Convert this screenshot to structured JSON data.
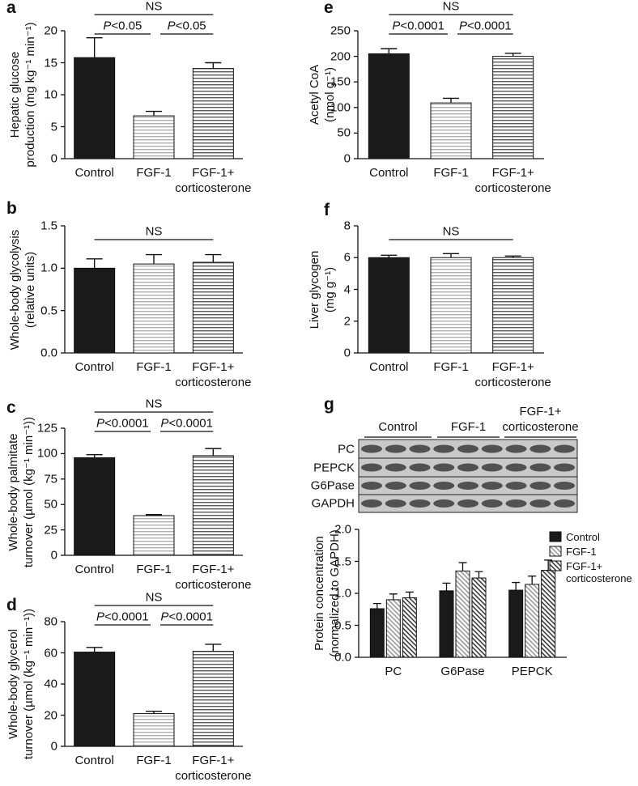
{
  "chart_data": [
    {
      "type": "bar",
      "panel": "a",
      "ylabel": "Hepatic glucose\nproduction (mg kg⁻¹ min⁻¹)",
      "categories": [
        "Control",
        "FGF-1",
        "FGF-1+\ncorticosterone"
      ],
      "values": [
        15.8,
        6.7,
        14.1
      ],
      "errors": [
        3.1,
        0.7,
        0.9
      ],
      "colors": [
        "#1a1a1a",
        "#b0b0b0",
        "#5a5a5a"
      ],
      "hatch": [
        "none",
        "horizontal",
        "horizontal"
      ],
      "ylim": [
        0,
        20
      ],
      "yticks": [
        0,
        5,
        10,
        15,
        20
      ],
      "annotations": [
        {
          "text": "NS",
          "from": 0,
          "to": 2
        },
        {
          "text": "P<0.05",
          "from": 0,
          "to": 1
        },
        {
          "text": "P<0.05",
          "from": 1,
          "to": 2
        }
      ]
    },
    {
      "type": "bar",
      "panel": "b",
      "ylabel": "Whole-body glycolysis\n(relative units)",
      "categories": [
        "Control",
        "FGF-1",
        "FGF-1+\ncorticosterone"
      ],
      "values": [
        1.0,
        1.05,
        1.07
      ],
      "errors": [
        0.11,
        0.11,
        0.09
      ],
      "colors": [
        "#1a1a1a",
        "#b0b0b0",
        "#5a5a5a"
      ],
      "hatch": [
        "none",
        "horizontal",
        "horizontal"
      ],
      "ylim": [
        0,
        1.5
      ],
      "yticks": [
        {
          "value": 0,
          "label": "0.0"
        },
        0.5,
        {
          "value": 1,
          "label": "1.0"
        },
        1.5
      ],
      "annotations": [
        {
          "text": "NS",
          "from": 0,
          "to": 2
        }
      ]
    },
    {
      "type": "bar",
      "panel": "c",
      "ylabel": "Whole-body palmitate\nturnover (µmol (kg⁻¹ min⁻¹))",
      "categories": [
        "Control",
        "FGF-1",
        "FGF-1+\ncorticosterone"
      ],
      "values": [
        96,
        39,
        98
      ],
      "errors": [
        3,
        1,
        7
      ],
      "colors": [
        "#1a1a1a",
        "#b0b0b0",
        "#5a5a5a"
      ],
      "hatch": [
        "none",
        "horizontal",
        "horizontal"
      ],
      "ylim": [
        0,
        125
      ],
      "yticks": [
        0,
        25,
        50,
        75,
        100,
        125
      ],
      "annotations": [
        {
          "text": "NS",
          "from": 0,
          "to": 2
        },
        {
          "text": "P<0.0001",
          "from": 0,
          "to": 1
        },
        {
          "text": "P<0.0001",
          "from": 1,
          "to": 2
        }
      ]
    },
    {
      "type": "bar",
      "panel": "d",
      "ylabel": "Whole-body glycerol\nturnover (µmol (kg⁻¹ min⁻¹))",
      "categories": [
        "Control",
        "FGF-1",
        "FGF-1+\ncorticosterone"
      ],
      "values": [
        60.5,
        21,
        61
      ],
      "errors": [
        3,
        1.5,
        4.5
      ],
      "colors": [
        "#1a1a1a",
        "#b0b0b0",
        "#5a5a5a"
      ],
      "hatch": [
        "none",
        "horizontal",
        "horizontal"
      ],
      "ylim": [
        0,
        80
      ],
      "yticks": [
        0,
        20,
        40,
        60,
        80
      ],
      "annotations": [
        {
          "text": "NS",
          "from": 0,
          "to": 2
        },
        {
          "text": "P<0.0001",
          "from": 0,
          "to": 1
        },
        {
          "text": "P<0.0001",
          "from": 1,
          "to": 2
        }
      ]
    },
    {
      "type": "bar",
      "panel": "e",
      "ylabel": "Acetyl CoA\n(nmol g⁻¹)",
      "categories": [
        "Control",
        "FGF-1",
        "FGF-1+\ncorticosterone"
      ],
      "values": [
        205,
        109,
        200
      ],
      "errors": [
        10,
        9,
        6
      ],
      "colors": [
        "#1a1a1a",
        "#b0b0b0",
        "#5a5a5a"
      ],
      "hatch": [
        "none",
        "horizontal",
        "horizontal"
      ],
      "ylim": [
        0,
        250
      ],
      "yticks": [
        0,
        50,
        100,
        150,
        200,
        250
      ],
      "annotations": [
        {
          "text": "NS",
          "from": 0,
          "to": 2
        },
        {
          "text": "P<0.0001",
          "from": 0,
          "to": 1
        },
        {
          "text": "P<0.0001",
          "from": 1,
          "to": 2
        }
      ]
    },
    {
      "type": "bar",
      "panel": "f",
      "ylabel": "Liver glycogen\n(mg g⁻¹)",
      "categories": [
        "Control",
        "FGF-1",
        "FGF-1+\ncorticosterone"
      ],
      "values": [
        6.0,
        6.0,
        6.0
      ],
      "errors": [
        0.15,
        0.25,
        0.1
      ],
      "colors": [
        "#1a1a1a",
        "#b0b0b0",
        "#5a5a5a"
      ],
      "hatch": [
        "none",
        "horizontal",
        "horizontal"
      ],
      "ylim": [
        0,
        8
      ],
      "yticks": [
        0,
        2,
        4,
        6,
        8
      ],
      "annotations": [
        {
          "text": "NS",
          "from": 0,
          "to": 2
        }
      ]
    },
    {
      "type": "grouped_bar",
      "panel": "g",
      "ylabel": "Protein concentration\n(normalized to GAPDH)",
      "categories": [
        "PC",
        "G6Pase",
        "PEPCK"
      ],
      "series": [
        {
          "name": "Control",
          "color": "#1a1a1a",
          "hatch": "none",
          "values": [
            0.76,
            1.04,
            1.05
          ],
          "errors": [
            0.08,
            0.12,
            0.12
          ]
        },
        {
          "name": "FGF-1",
          "color": "#9a9a9a",
          "hatch": "diagonal",
          "values": [
            0.9,
            1.35,
            1.14
          ],
          "errors": [
            0.09,
            0.13,
            0.13
          ]
        },
        {
          "name": "FGF-1+\ncorticosterone",
          "color": "#3a3a3a",
          "hatch": "diagonal",
          "values": [
            0.93,
            1.24,
            1.36
          ],
          "errors": [
            0.09,
            0.1,
            0.16
          ]
        }
      ],
      "ylim": [
        0,
        2
      ],
      "yticks": [
        {
          "value": 0,
          "label": "0.0"
        },
        0.5,
        {
          "value": 1,
          "label": "1.0"
        },
        1.5,
        {
          "value": 2,
          "label": "2.0"
        }
      ],
      "legend": "upper right"
    }
  ],
  "blot": {
    "groups": [
      "Control",
      "FGF-1",
      "FGF-1+\ncorticosterone"
    ],
    "rows": [
      "PC",
      "PEPCK",
      "G6Pase",
      "GAPDH"
    ]
  }
}
